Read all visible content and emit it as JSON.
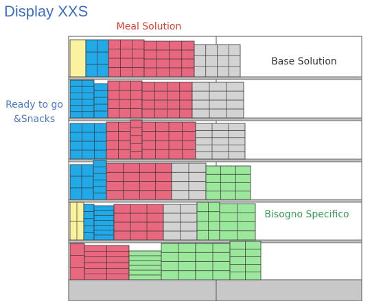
{
  "title": "Display XXS",
  "labels": {
    "meal_solution": "Meal Solution",
    "base_solution": "Base Solution",
    "ready_to_go": [
      "Ready to go",
      "&Snacks"
    ],
    "bisogno_specifico": "Bisogno Specifico"
  }
}
